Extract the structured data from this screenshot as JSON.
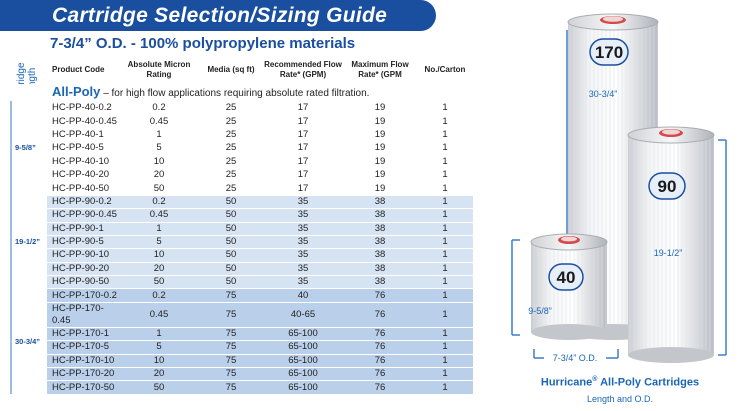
{
  "header": {
    "title": "Cartridge Selection/Sizing Guide",
    "subtitle": "7-3/4” O.D. - 100% polypropylene materials",
    "side_label_line1": "Cartridge",
    "side_label_line2": "Length"
  },
  "table": {
    "columns": [
      "Product Code",
      "Absolute Micron Rating",
      "Media (sq ft)",
      "Recommended Flow Rate* (GPM)",
      "Maximum Flow Rate* (GPM",
      "No./Carton"
    ],
    "banner": {
      "strong": "All-Poly",
      "text": "– for high flow applications requiring absolute rated filtration."
    },
    "groups": [
      {
        "length": "9-5/8”",
        "rows": [
          [
            "HC-PP-40-0.2",
            "0.2",
            "25",
            "17",
            "19",
            "1"
          ],
          [
            "HC-PP-40-0.45",
            "0.45",
            "25",
            "17",
            "19",
            "1"
          ],
          [
            "HC-PP-40-1",
            "1",
            "25",
            "17",
            "19",
            "1"
          ],
          [
            "HC-PP-40-5",
            "5",
            "25",
            "17",
            "19",
            "1"
          ],
          [
            "HC-PP-40-10",
            "10",
            "25",
            "17",
            "19",
            "1"
          ],
          [
            "HC-PP-40-20",
            "20",
            "25",
            "17",
            "19",
            "1"
          ],
          [
            "HC-PP-40-50",
            "50",
            "25",
            "17",
            "19",
            "1"
          ]
        ]
      },
      {
        "length": "19-1/2”",
        "rows": [
          [
            "HC-PP-90-0.2",
            "0.2",
            "50",
            "35",
            "38",
            "1"
          ],
          [
            "HC-PP-90-0.45",
            "0.45",
            "50",
            "35",
            "38",
            "1"
          ],
          [
            "HC-PP-90-1",
            "1",
            "50",
            "35",
            "38",
            "1"
          ],
          [
            "HC-PP-90-5",
            "5",
            "50",
            "35",
            "38",
            "1"
          ],
          [
            "HC-PP-90-10",
            "10",
            "50",
            "35",
            "38",
            "1"
          ],
          [
            "HC-PP-90-20",
            "20",
            "50",
            "35",
            "38",
            "1"
          ],
          [
            "HC-PP-90-50",
            "50",
            "50",
            "35",
            "38",
            "1"
          ]
        ]
      },
      {
        "length": "30-3/4”",
        "rows": [
          [
            "HC-PP-170-0.2",
            "0.2",
            "75",
            "40",
            "76",
            "1"
          ],
          [
            "HC-PP-170-0.45",
            "0.45",
            "75",
            "40-65",
            "76",
            "1"
          ],
          [
            "HC-PP-170-1",
            "1",
            "75",
            "65-100",
            "76",
            "1"
          ],
          [
            "HC-PP-170-5",
            "5",
            "75",
            "65-100",
            "76",
            "1"
          ],
          [
            "HC-PP-170-10",
            "10",
            "75",
            "65-100",
            "76",
            "1"
          ],
          [
            "HC-PP-170-20",
            "20",
            "75",
            "65-100",
            "76",
            "1"
          ],
          [
            "HC-PP-170-50",
            "50",
            "75",
            "65-100",
            "76",
            "1"
          ]
        ]
      }
    ]
  },
  "figure": {
    "badge_170": "170",
    "badge_90": "90",
    "badge_40": "40",
    "len_170": "30-3/4”",
    "len_90": "19-1/2”",
    "len_40": "9-5/8”",
    "od": "7-3/4” O.D.",
    "caption_brand": "Hurricane",
    "caption_reg": "®",
    "caption_rest": " All-Poly Cartridges",
    "caption_sub": "Length and O.D."
  },
  "colors": {
    "brand_blue": "#1a4fa0",
    "accent_blue": "#1a66b5",
    "band_light": "#d5e3f3",
    "band_mid": "#b9cfea"
  }
}
